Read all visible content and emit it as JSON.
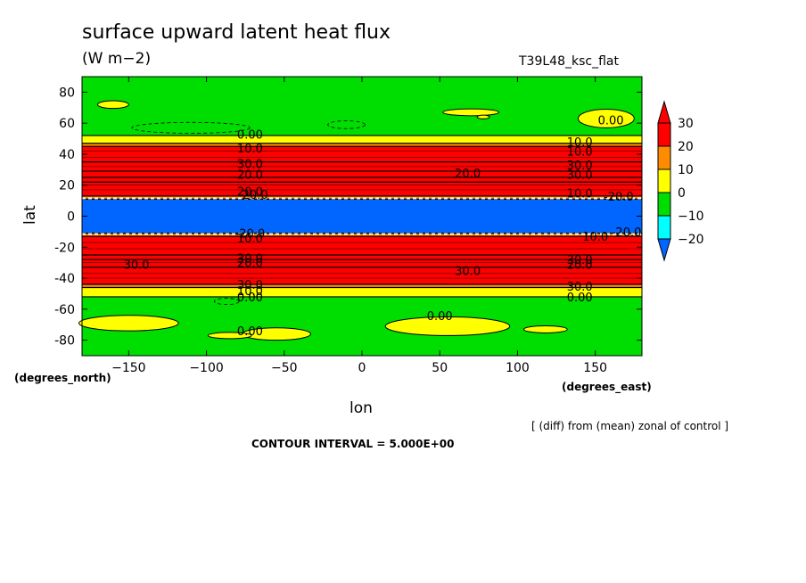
{
  "chart_data": {
    "type": "heatmap",
    "title": "surface upward latent heat flux",
    "units": "(W m−2)",
    "run_label": "T39L48_ksc_flat",
    "xlabel": "lon",
    "ylabel": "lat",
    "x_units": "(degrees_east)",
    "y_units": "(degrees_north)",
    "xlim": [
      -180,
      180
    ],
    "ylim": [
      -90,
      90
    ],
    "x_ticks": [
      -150,
      -100,
      -50,
      0,
      50,
      100,
      150
    ],
    "y_ticks": [
      80,
      60,
      40,
      20,
      0,
      -20,
      -40,
      -60,
      -80
    ],
    "colorbar": {
      "levels": [
        30,
        20,
        10,
        0,
        -10,
        -20
      ],
      "colors": [
        "#ff0000",
        "#ff8c00",
        "#ffff00",
        "#00dd00",
        "#00ffff",
        "#0066ff"
      ],
      "extend": "both"
    },
    "zonal_bands": [
      {
        "lat_from": -90,
        "lat_to": -52,
        "value": -5
      },
      {
        "lat_from": -52,
        "lat_to": -46,
        "value": 5
      },
      {
        "lat_from": -46,
        "lat_to": -44,
        "value": 15
      },
      {
        "lat_from": -44,
        "lat_to": -33,
        "value": 35
      },
      {
        "lat_from": -33,
        "lat_to": -28,
        "value": 25
      },
      {
        "lat_from": -28,
        "lat_to": -25,
        "value": 35
      },
      {
        "lat_from": -25,
        "lat_to": -13,
        "value": 35
      },
      {
        "lat_from": -13,
        "lat_to": -11,
        "value": 15
      },
      {
        "lat_from": -11,
        "lat_to": 11,
        "value": -25
      },
      {
        "lat_from": 11,
        "lat_to": 13,
        "value": 15
      },
      {
        "lat_from": 13,
        "lat_to": 22,
        "value": 35
      },
      {
        "lat_from": 22,
        "lat_to": 25,
        "value": 25
      },
      {
        "lat_from": 25,
        "lat_to": 29,
        "value": 35
      },
      {
        "lat_from": 29,
        "lat_to": 35,
        "value": 25
      },
      {
        "lat_from": 35,
        "lat_to": 45,
        "value": 35
      },
      {
        "lat_from": 45,
        "lat_to": 47,
        "value": 15
      },
      {
        "lat_from": 47,
        "lat_to": 52,
        "value": 5
      },
      {
        "lat_from": 52,
        "lat_to": 90,
        "value": -5
      }
    ],
    "contour_labels": [
      "0.00",
      "10.0",
      "20.0",
      "30.0",
      "-20.0"
    ],
    "contour_interval": "CONTOUR INTERVAL = 5.000E+00",
    "note": "[ (diff) from (mean) zonal of control ]",
    "grid": false,
    "legend": "right"
  }
}
